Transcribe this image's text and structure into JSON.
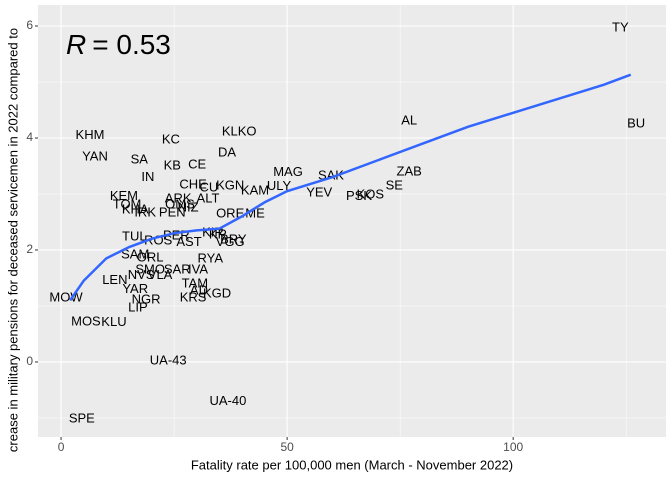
{
  "chart_data": {
    "type": "scatter",
    "annotation_var": "R",
    "annotation_value": "= 0.53",
    "x_label": "Fatality rate per 100,000 men (March - November 2022)",
    "y_label": "crease in military pensions for deceased servicemen in 2022 compared to",
    "xlim": [
      -5.1,
      133.8
    ],
    "ylim": [
      -1.34,
      6.375
    ],
    "xticks": [
      0,
      50,
      100
    ],
    "yticks": [
      0,
      2,
      4,
      6
    ],
    "grid": true,
    "minor_grid": true,
    "label_color": "#000000",
    "labels": [
      "TY",
      "AL",
      "BU",
      "KLKO",
      "KHM",
      "KC",
      "DA",
      "YAN",
      "SA",
      "KB",
      "CE",
      "IN",
      "ZAB",
      "MAG",
      "SAK",
      "CHE",
      "CU",
      "KGN",
      "ULY",
      "SE",
      "KAM",
      "YEV",
      "KOS",
      "PSK",
      "KEM",
      "ARK",
      "ALT",
      "TOM",
      "KHA",
      "OMS",
      "IRK",
      "PEN",
      "NIZ",
      "ORE",
      "ME",
      "KIR",
      "TUL",
      "PER",
      "KR",
      "BRY",
      "VGG",
      "AST",
      "ROS",
      "SAM",
      "ORL",
      "RYA",
      "SMO",
      "SAR",
      "IVA",
      "NVS",
      "VLA",
      "LEN",
      "TAM",
      "YAR",
      "AD",
      "KGD",
      "KRS",
      "NGR",
      "LIP",
      "MOW",
      "MOS",
      "KLU",
      "UA-43",
      "UA-40",
      "SPE"
    ],
    "x": [
      123.7,
      77.0,
      127.2,
      39.4,
      6.4,
      24.3,
      36.7,
      7.5,
      17.3,
      24.6,
      30.1,
      19.2,
      77.0,
      50.2,
      59.7,
      29.2,
      32.7,
      37.4,
      48.2,
      73.7,
      42.9,
      57.1,
      68.4,
      65.9,
      13.9,
      25.9,
      32.5,
      14.6,
      16.4,
      26.3,
      18.6,
      24.6,
      28.1,
      37.4,
      42.9,
      33.6,
      16.2,
      25.5,
      34.7,
      38.1,
      37.4,
      28.3,
      21.5,
      16.4,
      19.7,
      33.0,
      19.7,
      25.7,
      30.3,
      17.7,
      21.9,
      11.9,
      29.6,
      16.4,
      30.5,
      34.5,
      29.2,
      18.8,
      17.0,
      1.1,
      5.5,
      11.7,
      23.7,
      36.9,
      4.6
    ],
    "y": [
      5.96,
      4.3,
      4.25,
      4.11,
      4.04,
      3.96,
      3.73,
      3.66,
      3.61,
      3.5,
      3.52,
      3.29,
      3.39,
      3.38,
      3.32,
      3.16,
      3.11,
      3.14,
      3.13,
      3.14,
      3.05,
      3.02,
      2.98,
      2.95,
      2.95,
      2.91,
      2.91,
      2.8,
      2.71,
      2.8,
      2.66,
      2.66,
      2.75,
      2.64,
      2.64,
      2.3,
      2.23,
      2.25,
      2.27,
      2.18,
      2.13,
      2.13,
      2.16,
      1.91,
      1.86,
      1.84,
      1.64,
      1.64,
      1.64,
      1.54,
      1.54,
      1.45,
      1.39,
      1.29,
      1.27,
      1.21,
      1.14,
      1.11,
      0.96,
      1.14,
      0.71,
      0.7,
      0.02,
      -0.71,
      -1.02
    ],
    "fit": {
      "color": "#3366ff",
      "x": [
        2,
        5,
        10,
        15,
        20,
        25,
        30,
        35,
        40,
        45,
        50,
        60,
        70,
        80,
        90,
        100,
        110,
        120,
        126
      ],
      "y": [
        1.1,
        1.45,
        1.85,
        2.05,
        2.2,
        2.3,
        2.35,
        2.38,
        2.6,
        2.85,
        3.05,
        3.3,
        3.6,
        3.9,
        4.2,
        4.45,
        4.7,
        4.95,
        5.13
      ]
    }
  }
}
